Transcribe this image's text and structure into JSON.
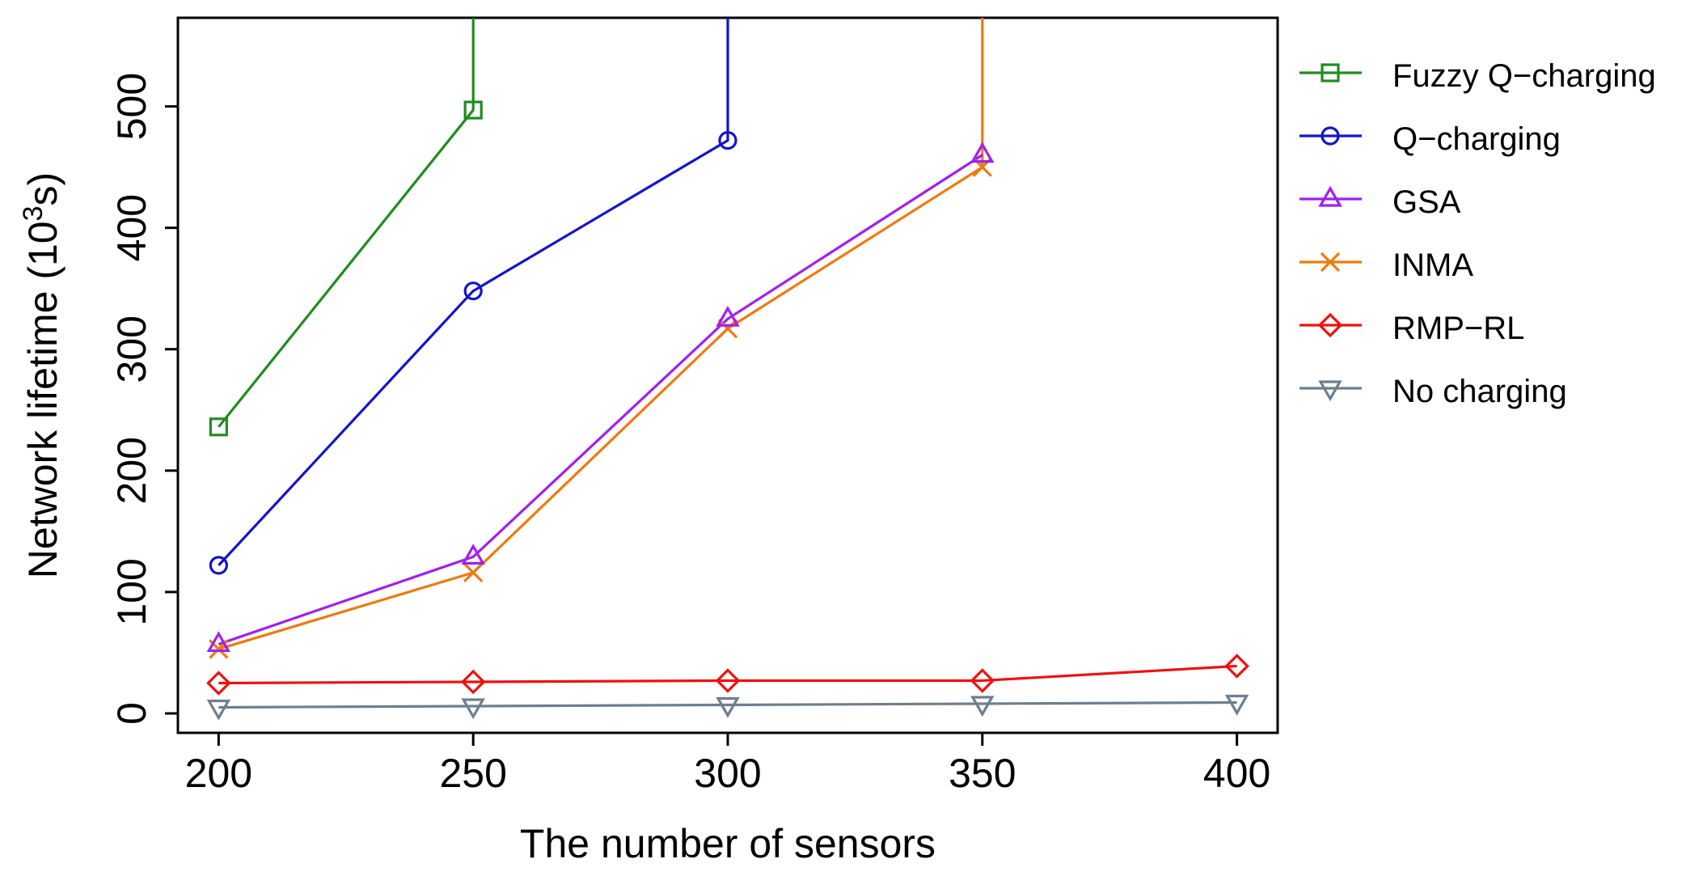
{
  "chart_data": {
    "type": "line",
    "title": "",
    "xlabel": "The number of sensors",
    "ylabel": "Network lifetime (10",
    "ylabel_sup": "3",
    "ylabel_tail": "s)",
    "x": [
      200,
      250,
      300,
      350,
      400
    ],
    "xticks": [
      200,
      250,
      300,
      350,
      400
    ],
    "yticks": [
      0,
      100,
      200,
      300,
      400,
      500
    ],
    "xlim": [
      192,
      408
    ],
    "ylim": [
      -16,
      573
    ],
    "grid": false,
    "legend_position": "right",
    "series": [
      {
        "name": "Fuzzy Q−charging",
        "color": "#228B22",
        "marker": "square",
        "values": [
          236,
          497,
          null,
          null,
          null
        ],
        "exceeds_after": 250
      },
      {
        "name": "Q−charging",
        "color": "#1515C8",
        "marker": "circle",
        "values": [
          122,
          348,
          472,
          null,
          null
        ],
        "exceeds_after": 300
      },
      {
        "name": "GSA",
        "color": "#A020F0",
        "marker": "triangle-up",
        "values": [
          57,
          129,
          325,
          460,
          null
        ]
      },
      {
        "name": "INMA",
        "color": "#EE7A0F",
        "marker": "x",
        "values": [
          53,
          116,
          317,
          450,
          null
        ],
        "exceeds_after": 350
      },
      {
        "name": "RMP−RL",
        "color": "#EE1111",
        "marker": "diamond",
        "values": [
          25,
          26,
          27,
          27,
          39
        ]
      },
      {
        "name": "No charging",
        "color": "#6E7F8E",
        "marker": "triangle-down",
        "values": [
          5,
          6,
          7,
          8,
          9
        ]
      }
    ]
  }
}
